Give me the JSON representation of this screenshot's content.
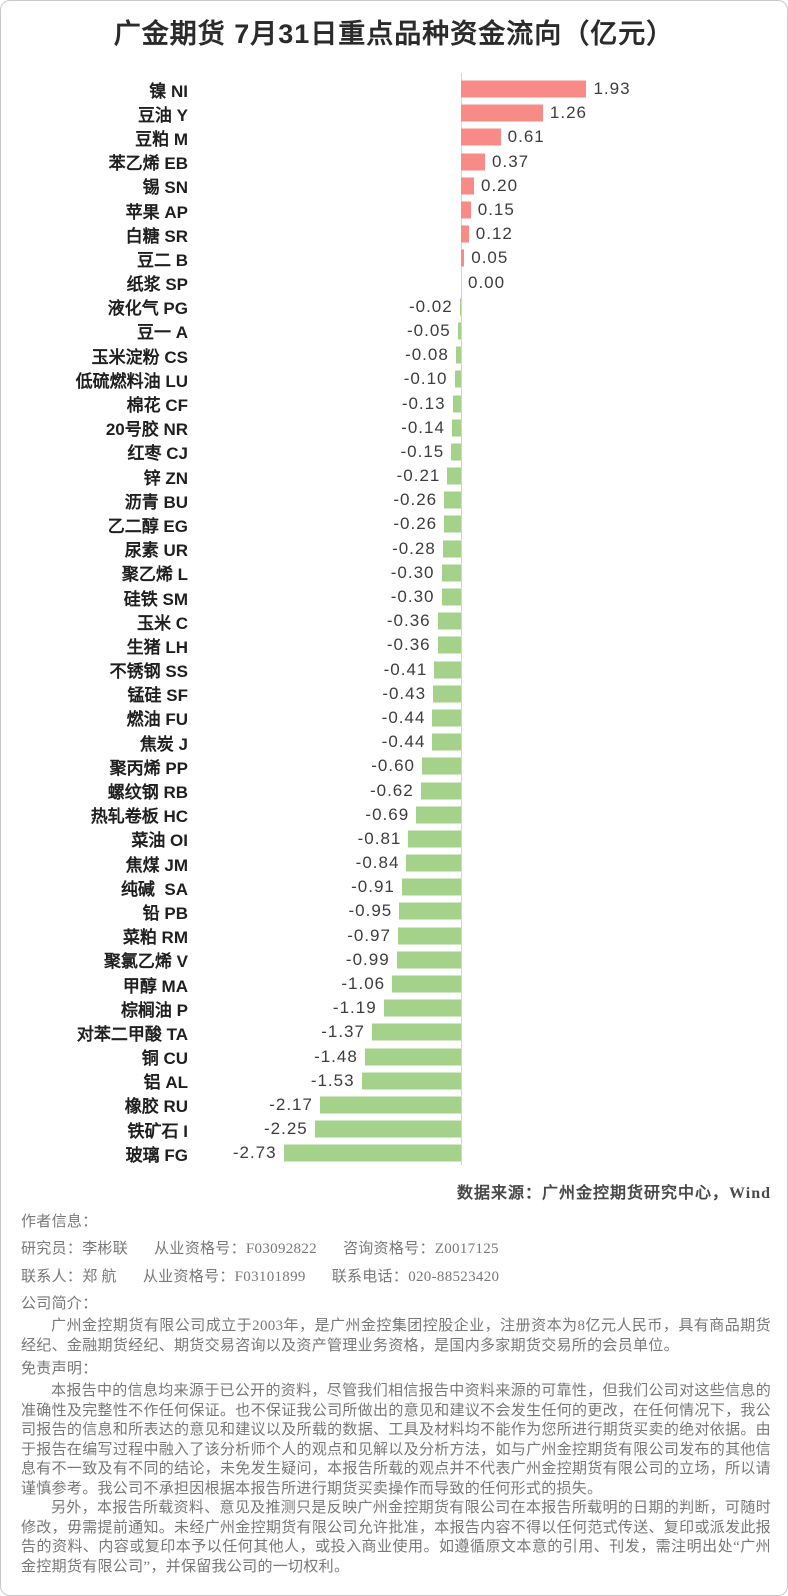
{
  "title": "广金期货 7月31日重点品种资金流向（亿元）",
  "chart_data": {
    "type": "bar",
    "orientation": "horizontal",
    "title": "广金期货 7月31日重点品种资金流向（亿元）",
    "unit": "亿元",
    "xlim": [
      -2.73,
      1.93
    ],
    "grid": false,
    "zero_axis_line": true,
    "positive_color": "#f98b87",
    "negative_color": "#a5d28b",
    "categories": [
      "镍 NI",
      "豆油 Y",
      "豆粕 M",
      "苯乙烯 EB",
      "锡 SN",
      "苹果 AP",
      "白糖 SR",
      "豆二 B",
      "纸浆 SP",
      "液化气 PG",
      "豆一 A",
      "玉米淀粉 CS",
      "低硫燃料油 LU",
      "棉花 CF",
      "20号胶 NR",
      "红枣 CJ",
      "锌 ZN",
      "沥青 BU",
      "乙二醇 EG",
      "尿素 UR",
      "聚乙烯 L",
      "硅铁 SM",
      "玉米 C",
      "生猪 LH",
      "不锈钢 SS",
      "锰硅 SF",
      "燃油 FU",
      "焦炭 J",
      "聚丙烯 PP",
      "螺纹钢 RB",
      "热轧卷板 HC",
      "菜油 OI",
      "焦煤 JM",
      "纯碱  SA",
      "铅 PB",
      "菜粕 RM",
      "聚氯乙烯 V",
      "甲醇 MA",
      "棕榈油 P",
      "对苯二甲酸 TA",
      "铜 CU",
      "铝 AL",
      "橡胶 RU",
      "铁矿石 I",
      "玻璃 FG"
    ],
    "values": [
      1.93,
      1.26,
      0.61,
      0.37,
      0.2,
      0.15,
      0.12,
      0.05,
      0.0,
      -0.02,
      -0.05,
      -0.08,
      -0.1,
      -0.13,
      -0.14,
      -0.15,
      -0.21,
      -0.26,
      -0.26,
      -0.28,
      -0.3,
      -0.3,
      -0.36,
      -0.36,
      -0.41,
      -0.43,
      -0.44,
      -0.44,
      -0.6,
      -0.62,
      -0.69,
      -0.81,
      -0.84,
      -0.91,
      -0.95,
      -0.97,
      -0.99,
      -1.06,
      -1.19,
      -1.37,
      -1.48,
      -1.53,
      -2.17,
      -2.25,
      -2.73
    ]
  },
  "source_note": "数据来源：广州金控期货研究中心，Wind",
  "footer": {
    "author_header": "作者信息：",
    "researcher": {
      "role_name": "研究员：李彬联",
      "license": "从业资格号：F03092822",
      "advisory": "咨询资格号：Z0017125"
    },
    "contact": {
      "role_name": "联系人：郑 航",
      "license": "从业资格号：F03101899",
      "phone": "联系电话：020-88523420"
    },
    "company_header": "公司简介：",
    "company_profile": "广州金控期货有限公司成立于2003年，是广州金控集团控股企业，注册资本为8亿元人民币，具有商品期货经纪、金融期货经纪、期货交易咨询以及资产管理业务资格，是国内多家期货交易所的会员单位。",
    "disclaimer_header": "免责声明：",
    "disclaimer_paragraphs": [
      "本报告中的信息均来源于已公开的资料，尽管我们相信报告中资料来源的可靠性，但我们公司对这些信息的准确性及完整性不作任何保证。也不保证我公司所做出的意见和建议不会发生任何的更改，在任何情况下，我公司报告的信息和所表达的意见和建议以及所载的数据、工具及材料均不能作为您所进行期货买卖的绝对依据。由于报告在编写过程中融入了该分析师个人的观点和见解以及分析方法，如与广州金控期货有限公司发布的其他信息有不一致及有不同的结论，未免发生疑问，本报告所载的观点并不代表广州金控期货有限公司的立场，所以请谨慎参考。我公司不承担因根据本报告所进行期货买卖操作而导致的任何形式的损失。",
      "另外，本报告所载资料、意见及推测只是反映广州金控期货有限公司在本报告所载明的日期的判断，可随时修改，毋需提前通知。未经广州金控期货有限公司允许批准，本报告内容不得以任何范式传送、复印或派发此报告的资料、内容或复印本予以任何其他人，或投入商业使用。如遵循原文本意的引用、刊发，需注明出处“广州金控期货有限公司”，并保留我公司的一切权利。"
    ]
  }
}
